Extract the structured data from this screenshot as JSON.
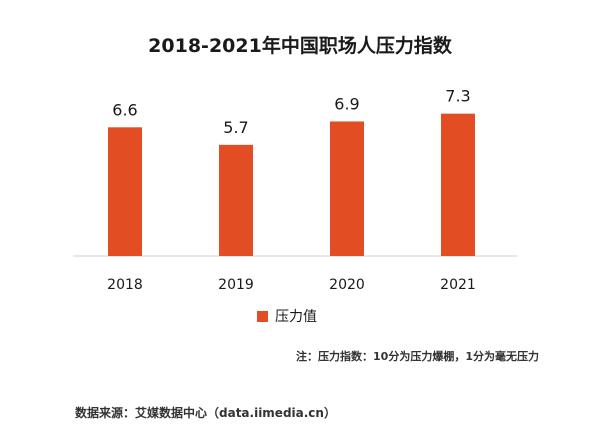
{
  "chart_data": {
    "type": "bar",
    "title": "2018-2021年中国职场人压力指数",
    "categories": [
      "2018",
      "2019",
      "2020",
      "2021"
    ],
    "series": [
      {
        "name": "压力值",
        "values": [
          6.6,
          5.7,
          6.9,
          7.3
        ]
      }
    ],
    "value_labels": [
      "6.6",
      "5.7",
      "6.9",
      "7.3"
    ],
    "bar_color": "#E34D24",
    "ylim": [
      0,
      10
    ],
    "grid": false,
    "legend_position": "bottom"
  },
  "legend": {
    "label": "压力值"
  },
  "note": "注：压力指数：10分为压力爆棚，1分为毫无压力",
  "source": "数据来源：艾媒数据中心（data.iimedia.cn）"
}
